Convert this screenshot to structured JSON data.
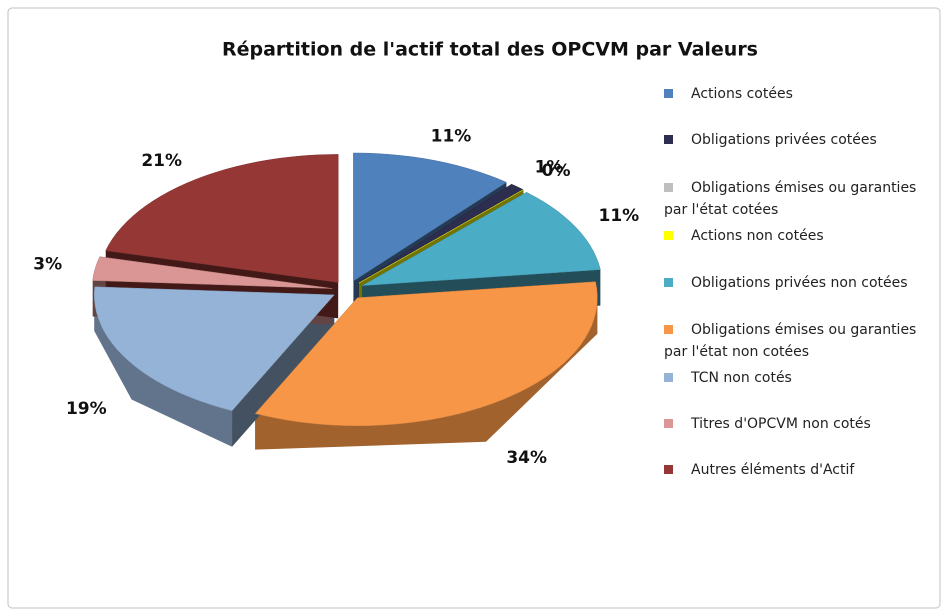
{
  "chart_data": {
    "type": "pie3d",
    "title": "Répartition de l'actif total des OPCVM par Valeurs",
    "categories": [
      "Actions cotées",
      "Obligations privées cotées",
      "Obligations émises ou garanties par l'état cotées",
      "Actions non cotées",
      "Obligations privées non cotées",
      "Obligations émises ou garanties par l'état non cotées",
      "TCN non cotés",
      "Titres d'OPCVM non cotés",
      "Autres éléments d'Actif"
    ],
    "values": [
      11,
      1,
      0,
      0,
      11,
      34,
      19,
      3,
      21
    ],
    "value_labels": [
      "11%",
      "1%",
      null,
      "0%",
      "11%",
      "34%",
      "19%",
      "3%",
      "21%"
    ],
    "colors": [
      "#4f81bd",
      "#2d2d4f",
      "#bfbfbf",
      "#ffff00",
      "#4bacc6",
      "#f79646",
      "#95b3d7",
      "#d99694",
      "#953735"
    ],
    "legend": "right"
  }
}
